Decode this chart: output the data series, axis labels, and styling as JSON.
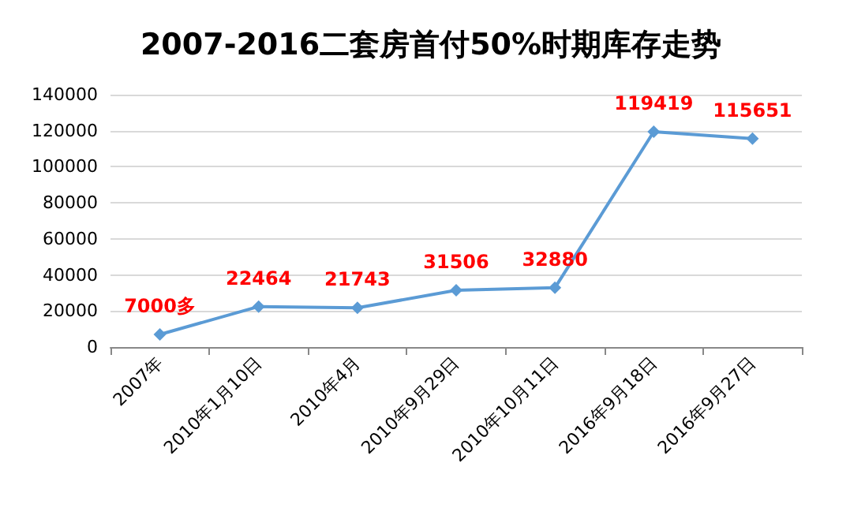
{
  "chart_data": {
    "type": "line",
    "title": "2007-2016二套房首付50%时期库存走势",
    "categories": [
      "2007年",
      "2010年1月10日",
      "2010年4月",
      "2010年9月29日",
      "2010年10月11日",
      "2016年9月18日",
      "2016年9月27日"
    ],
    "series": [
      {
        "color": "#5b9bd5",
        "values": [
          7000,
          22464,
          21743,
          31506,
          32880,
          119419,
          115651
        ],
        "value_labels": [
          "7000多",
          "22464",
          "21743",
          "31506",
          "32880",
          "119419",
          "115651"
        ]
      }
    ],
    "ylim": [
      0,
      140000
    ],
    "yticks": [
      0,
      20000,
      40000,
      60000,
      80000,
      100000,
      120000,
      140000
    ],
    "grid": "y",
    "marker": "diamond",
    "line_style": "solid"
  }
}
